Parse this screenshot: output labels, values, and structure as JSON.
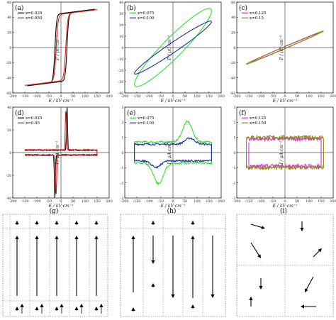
{
  "chart_data": [
    {
      "panel": "(a)",
      "type": "line",
      "xlabel": "E / kV·cm⁻¹",
      "ylabel": "P / μC·cm⁻²",
      "xlim": [
        -200,
        200
      ],
      "ylim": [
        -60,
        60
      ],
      "xticks": [
        "-200",
        "-150",
        "-100",
        "-50",
        "0",
        "50",
        "100",
        "150",
        "200"
      ],
      "yticks": [
        "-60",
        "-40",
        "-20",
        "0",
        "20",
        "40",
        "60"
      ],
      "legend_position": "top-left",
      "series": [
        {
          "name": "x=0.025",
          "color": "#000000",
          "kind": "hyst",
          "params": {
            "ps": 45,
            "ec": -25,
            "ec2": 25,
            "w": 7,
            "slope": 0.04,
            "xr": 140
          }
        },
        {
          "name": "x=0.050",
          "color": "#e0201c",
          "kind": "hyst",
          "params": {
            "ps": 44,
            "ec": -20,
            "ec2": 20,
            "w": 8,
            "slope": 0.04,
            "xr": 150
          }
        }
      ]
    },
    {
      "panel": "(b)",
      "type": "line",
      "xlabel": "E / kV·cm⁻¹",
      "ylabel": "P / μC·cm⁻²",
      "xlim": [
        -200,
        200
      ],
      "ylim": [
        -40,
        40
      ],
      "xticks": [
        "-200",
        "-150",
        "-100",
        "-50",
        "0",
        "50",
        "100",
        "150",
        "200"
      ],
      "yticks": [
        "-40",
        "-30",
        "-20",
        "-10",
        "0",
        "10",
        "20",
        "30",
        "40"
      ],
      "legend_position": "top-left",
      "series": [
        {
          "name": "x=0.075",
          "color": "#2fe02f",
          "kind": "loop",
          "params": {
            "xr": 160,
            "pm": 34,
            "pr": 12,
            "ec": 20
          }
        },
        {
          "name": "x=0.100",
          "color": "#1c2fa8",
          "kind": "loop",
          "params": {
            "xr": 160,
            "pm": 24,
            "pr": 5,
            "ec": 10
          }
        }
      ]
    },
    {
      "panel": "(c)",
      "type": "line",
      "xlabel": "E / kV·cm⁻¹",
      "ylabel": "P / μC·cm⁻²",
      "xlim": [
        -200,
        200
      ],
      "ylim": [
        -60,
        60
      ],
      "xticks": [
        "-200",
        "-150",
        "-100",
        "-50",
        "0",
        "50",
        "100",
        "150",
        "200"
      ],
      "yticks": [
        "-60",
        "-40",
        "-20",
        "0",
        "20",
        "40",
        "60"
      ],
      "legend_position": "top-left",
      "series": [
        {
          "name": "x=0.125",
          "color": "#e030e0",
          "kind": "loop",
          "params": {
            "xr": 140,
            "pm": 20,
            "pr": 1.2,
            "ec": 2
          }
        },
        {
          "name": "x=0.15",
          "color": "#8a8a10",
          "kind": "loop",
          "params": {
            "xr": 160,
            "pm": 23,
            "pr": 1.5,
            "ec": 2
          }
        }
      ]
    },
    {
      "panel": "(d)",
      "type": "line",
      "xlabel": "E / kV·cm⁻¹",
      "ylabel": "I / μA·cm⁻²",
      "xlim": [
        -200,
        200
      ],
      "ylim": [
        -40,
        40
      ],
      "xticks": [
        "-200",
        "-150",
        "-100",
        "-50",
        "0",
        "50",
        "100",
        "150",
        "200"
      ],
      "yticks": [
        "-40",
        "-20",
        "0",
        "20",
        "40"
      ],
      "legend_position": "top-left",
      "series": [
        {
          "name": "x=0.025",
          "color": "#000000",
          "kind": "iv-peak",
          "params": {
            "xr": 150,
            "base": 2,
            "peak": 40,
            "ec": 25
          }
        },
        {
          "name": "x=0.05",
          "color": "#e0201c",
          "kind": "iv-peak",
          "params": {
            "xr": 150,
            "base": 2.5,
            "peak": 36,
            "ec": 20
          }
        }
      ]
    },
    {
      "panel": "(e)",
      "type": "line",
      "xlabel": "E / kV·cm⁻¹",
      "ylabel": "I / μA·cm⁻²",
      "xlim": [
        -200,
        200
      ],
      "ylim": [
        -3,
        3
      ],
      "xticks": [
        "-200",
        "-150",
        "-100",
        "-50",
        "0",
        "50",
        "100",
        "150",
        "200"
      ],
      "yticks": [
        "-3",
        "-2",
        "-1",
        "0",
        "1",
        "2",
        "3"
      ],
      "legend_position": "top-left",
      "series": [
        {
          "name": "x=0.075",
          "color": "#2fe02f",
          "kind": "iv-wide",
          "params": {
            "xr": 160,
            "base": 0.7,
            "peak": 1.5,
            "ec": 60
          }
        },
        {
          "name": "x=0.100",
          "color": "#1c2fa8",
          "kind": "iv-wide",
          "params": {
            "xr": 160,
            "base": 0.55,
            "peak": 0.45,
            "ec": 70
          }
        }
      ]
    },
    {
      "panel": "(f)",
      "type": "line",
      "xlabel": "E / kV·cm⁻¹",
      "ylabel": "I / μA·cm⁻²",
      "xlim": [
        -200,
        200
      ],
      "ylim": [
        -3,
        3
      ],
      "xticks": [
        "-200",
        "-150",
        "-100",
        "-50",
        "0",
        "50",
        "100",
        "150",
        "200"
      ],
      "yticks": [
        "-3",
        "-2",
        "-1",
        "0",
        "1",
        "2",
        "3"
      ],
      "legend_position": "top-left",
      "series": [
        {
          "name": "x=0.125",
          "color": "#e030e0",
          "kind": "iv-flat",
          "params": {
            "xr": 150,
            "base": 0.9
          }
        },
        {
          "name": "x=0.150",
          "color": "#8a8a10",
          "kind": "iv-flat",
          "params": {
            "xr": 160,
            "base": 1.0
          }
        }
      ]
    }
  ],
  "domain_panels": [
    {
      "label": "(g)"
    },
    {
      "label": "(h)"
    },
    {
      "label": "(i)"
    }
  ]
}
